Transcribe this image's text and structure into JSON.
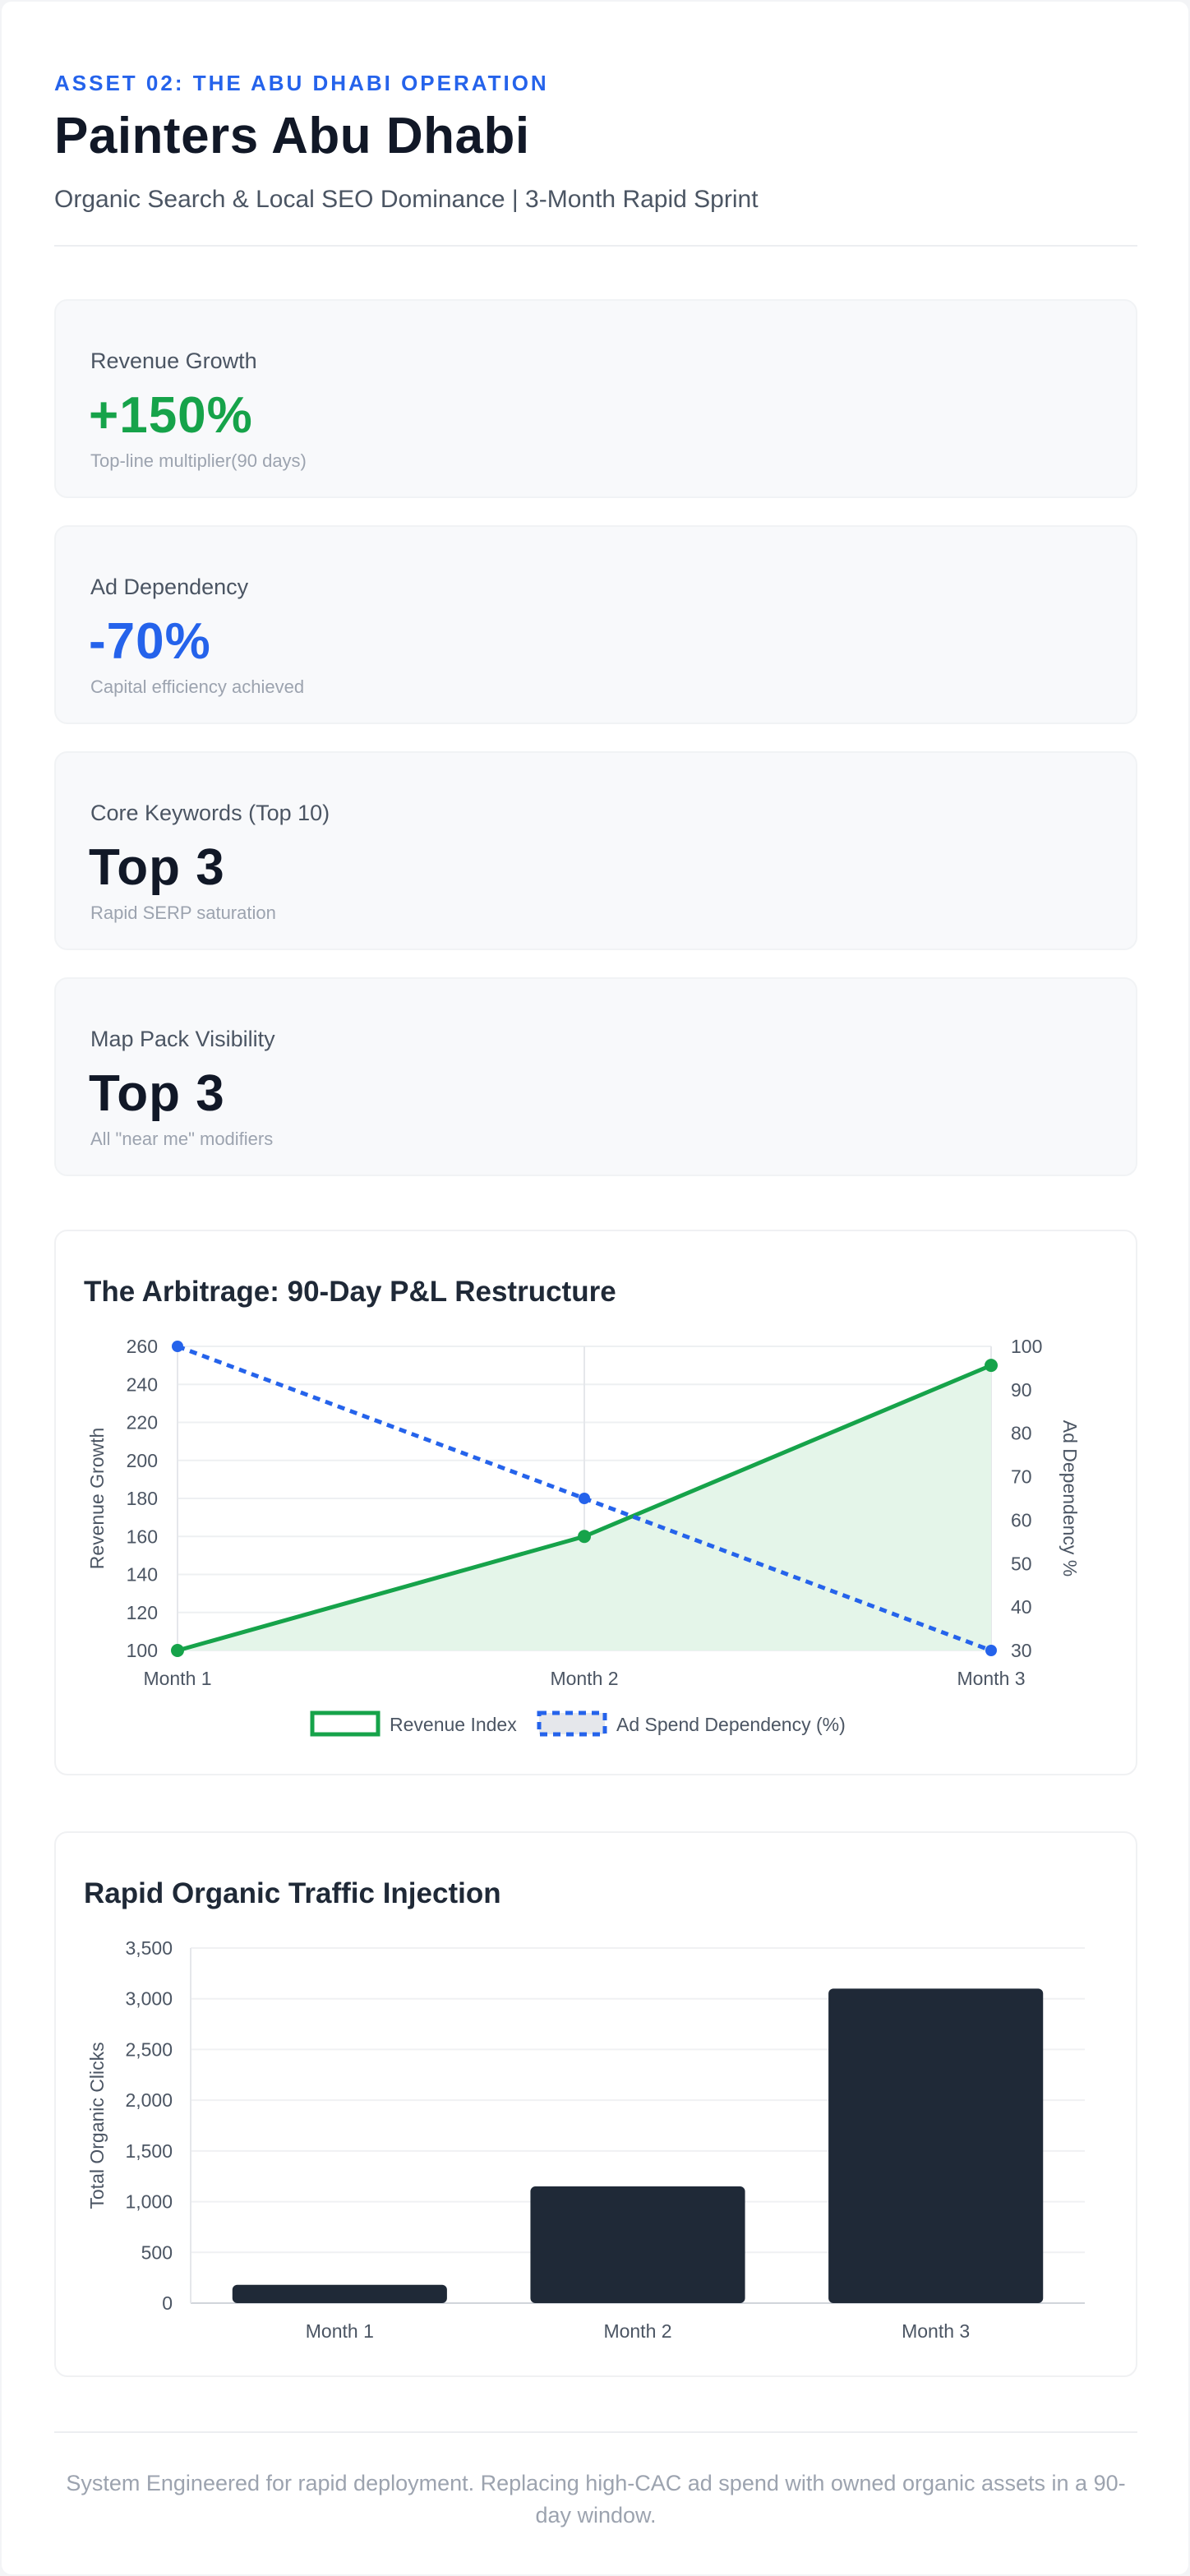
{
  "header": {
    "eyebrow": "ASSET 02: THE ABU DHABI OPERATION",
    "title": "Painters Abu Dhabi",
    "subtitle": "Organic Search & Local SEO Dominance | 3-Month Rapid Sprint"
  },
  "kpis": [
    {
      "label": "Revenue Growth",
      "value": "+150%",
      "note": "Top-line multiplier(90 days)",
      "color": "#16a34a"
    },
    {
      "label": "Ad Dependency",
      "value": "-70%",
      "note": "Capital efficiency achieved",
      "color": "#2563eb"
    },
    {
      "label": "Core Keywords (Top 10)",
      "value": "Top 3",
      "note": "Rapid SERP saturation",
      "color": "#111827"
    },
    {
      "label": "Map Pack Visibility",
      "value": "Top 3",
      "note": "All \"near me\" modifiers",
      "color": "#111827"
    }
  ],
  "chart_data": [
    {
      "type": "line",
      "title": "The Arbitrage: 90-Day P&L Restructure",
      "categories": [
        "Month 1",
        "Month 2",
        "Month 3"
      ],
      "ylabel": "Revenue Growth",
      "y2label": "Ad Dependency %",
      "ylim": [
        100,
        260
      ],
      "yticks": [
        "260",
        "240",
        "220",
        "200",
        "180",
        "160",
        "140",
        "120",
        "100"
      ],
      "y2lim": [
        30,
        100
      ],
      "y2ticks": [
        "100",
        "90",
        "80",
        "70",
        "60",
        "50",
        "40",
        "30"
      ],
      "grid": true,
      "legend_position": "bottom",
      "series": [
        {
          "name": "Revenue Index",
          "axis": "left",
          "values": [
            100,
            160,
            250
          ],
          "color": "#16a34a",
          "fill": "#e4f5e9",
          "style": "solid"
        },
        {
          "name": "Ad Spend Dependency (%)",
          "axis": "right",
          "values": [
            100,
            65,
            30
          ],
          "color": "#2563eb",
          "style": "dashed"
        }
      ]
    },
    {
      "type": "bar",
      "title": "Rapid Organic Traffic Injection",
      "categories": [
        "Month 1",
        "Month 2",
        "Month 3"
      ],
      "values": [
        180,
        1150,
        3100
      ],
      "ylabel": "Total Organic Clicks",
      "ylim": [
        0,
        3500
      ],
      "yticks": [
        "3,500",
        "3,000",
        "2,500",
        "2,000",
        "1,500",
        "1,000",
        "500",
        "0"
      ],
      "grid": true,
      "color": "#1f2937"
    }
  ],
  "footer": {
    "text": "System Engineered for rapid deployment. Replacing high-CAC ad spend with owned organic assets in a 90-day window."
  }
}
